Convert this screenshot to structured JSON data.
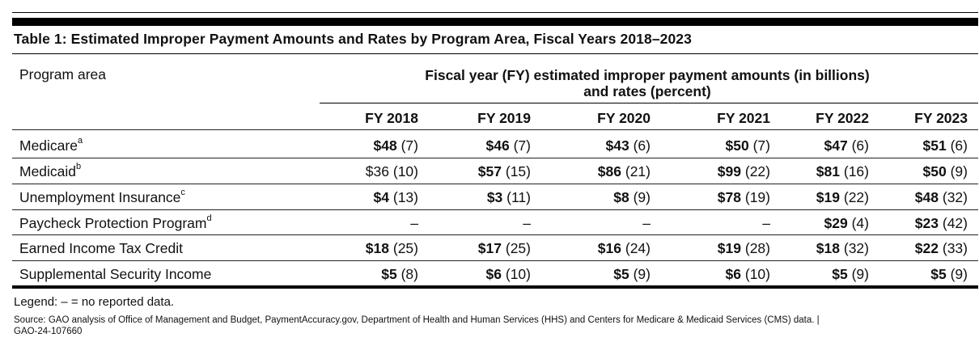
{
  "table": {
    "title": "Table 1: Estimated Improper Payment Amounts and Rates by Program Area, Fiscal Years 2018–2023",
    "row_header": "Program area",
    "group_header_line1": "Fiscal year (FY) estimated improper payment amounts (in billions)",
    "group_header_line2": "and rates (percent)",
    "years": [
      "FY 2018",
      "FY 2019",
      "FY 2020",
      "FY 2021",
      "FY 2022",
      "FY 2023"
    ],
    "rows": [
      {
        "label": "Medicare",
        "note": "a",
        "cells": [
          {
            "amount": "$48",
            "bold": true,
            "rate": "(7)"
          },
          {
            "amount": "$46",
            "bold": true,
            "rate": "(7)"
          },
          {
            "amount": "$43",
            "bold": true,
            "rate": "(6)"
          },
          {
            "amount": "$50",
            "bold": true,
            "rate": "(7)"
          },
          {
            "amount": "$47",
            "bold": true,
            "rate": "(6)"
          },
          {
            "amount": "$51",
            "bold": true,
            "rate": "(6)"
          }
        ]
      },
      {
        "label": "Medicaid",
        "note": "b",
        "cells": [
          {
            "amount": "$36",
            "bold": false,
            "rate": "(10)"
          },
          {
            "amount": "$57",
            "bold": true,
            "rate": "(15)"
          },
          {
            "amount": "$86",
            "bold": true,
            "rate": "(21)"
          },
          {
            "amount": "$99",
            "bold": true,
            "rate": "(22)"
          },
          {
            "amount": "$81",
            "bold": true,
            "rate": "(16)"
          },
          {
            "amount": "$50",
            "bold": true,
            "rate": "(9)"
          }
        ]
      },
      {
        "label": "Unemployment Insurance",
        "note": "c",
        "cells": [
          {
            "amount": "$4",
            "bold": true,
            "rate": "(13)"
          },
          {
            "amount": "$3",
            "bold": true,
            "rate": "(11)"
          },
          {
            "amount": "$8",
            "bold": true,
            "rate": "(9)"
          },
          {
            "amount": "$78",
            "bold": true,
            "rate": "(19)"
          },
          {
            "amount": "$19",
            "bold": true,
            "rate": "(22)"
          },
          {
            "amount": "$48",
            "bold": true,
            "rate": "(32)"
          }
        ]
      },
      {
        "label": "Paycheck Protection Program",
        "note": "d",
        "cells": [
          {
            "amount": "–",
            "bold": false,
            "rate": ""
          },
          {
            "amount": "–",
            "bold": false,
            "rate": ""
          },
          {
            "amount": "–",
            "bold": false,
            "rate": ""
          },
          {
            "amount": "–",
            "bold": false,
            "rate": ""
          },
          {
            "amount": "$29",
            "bold": true,
            "rate": "(4)"
          },
          {
            "amount": "$23",
            "bold": true,
            "rate": "(42)"
          }
        ]
      },
      {
        "label": "Earned Income Tax Credit",
        "note": "",
        "cells": [
          {
            "amount": "$18",
            "bold": true,
            "rate": "(25)"
          },
          {
            "amount": "$17",
            "bold": true,
            "rate": "(25)"
          },
          {
            "amount": "$16",
            "bold": true,
            "rate": "(24)"
          },
          {
            "amount": "$19",
            "bold": true,
            "rate": "(28)"
          },
          {
            "amount": "$18",
            "bold": true,
            "rate": "(32)"
          },
          {
            "amount": "$22",
            "bold": true,
            "rate": "(33)"
          }
        ]
      },
      {
        "label": "Supplemental Security Income",
        "note": "",
        "cells": [
          {
            "amount": "$5",
            "bold": true,
            "rate": "(8)"
          },
          {
            "amount": "$6",
            "bold": true,
            "rate": "(10)"
          },
          {
            "amount": "$5",
            "bold": true,
            "rate": "(9)"
          },
          {
            "amount": "$6",
            "bold": true,
            "rate": "(10)"
          },
          {
            "amount": "$5",
            "bold": true,
            "rate": "(9)"
          },
          {
            "amount": "$5",
            "bold": true,
            "rate": "(9)"
          }
        ]
      }
    ]
  },
  "legend": "Legend: – = no reported data.",
  "source_line1": "Source: GAO analysis of Office of Management and Budget, PaymentAccuracy.gov, Department of Health and Human Services (HHS) and Centers for Medicare & Medicaid Services (CMS) data.  |",
  "source_line2": "GAO-24-107660"
}
